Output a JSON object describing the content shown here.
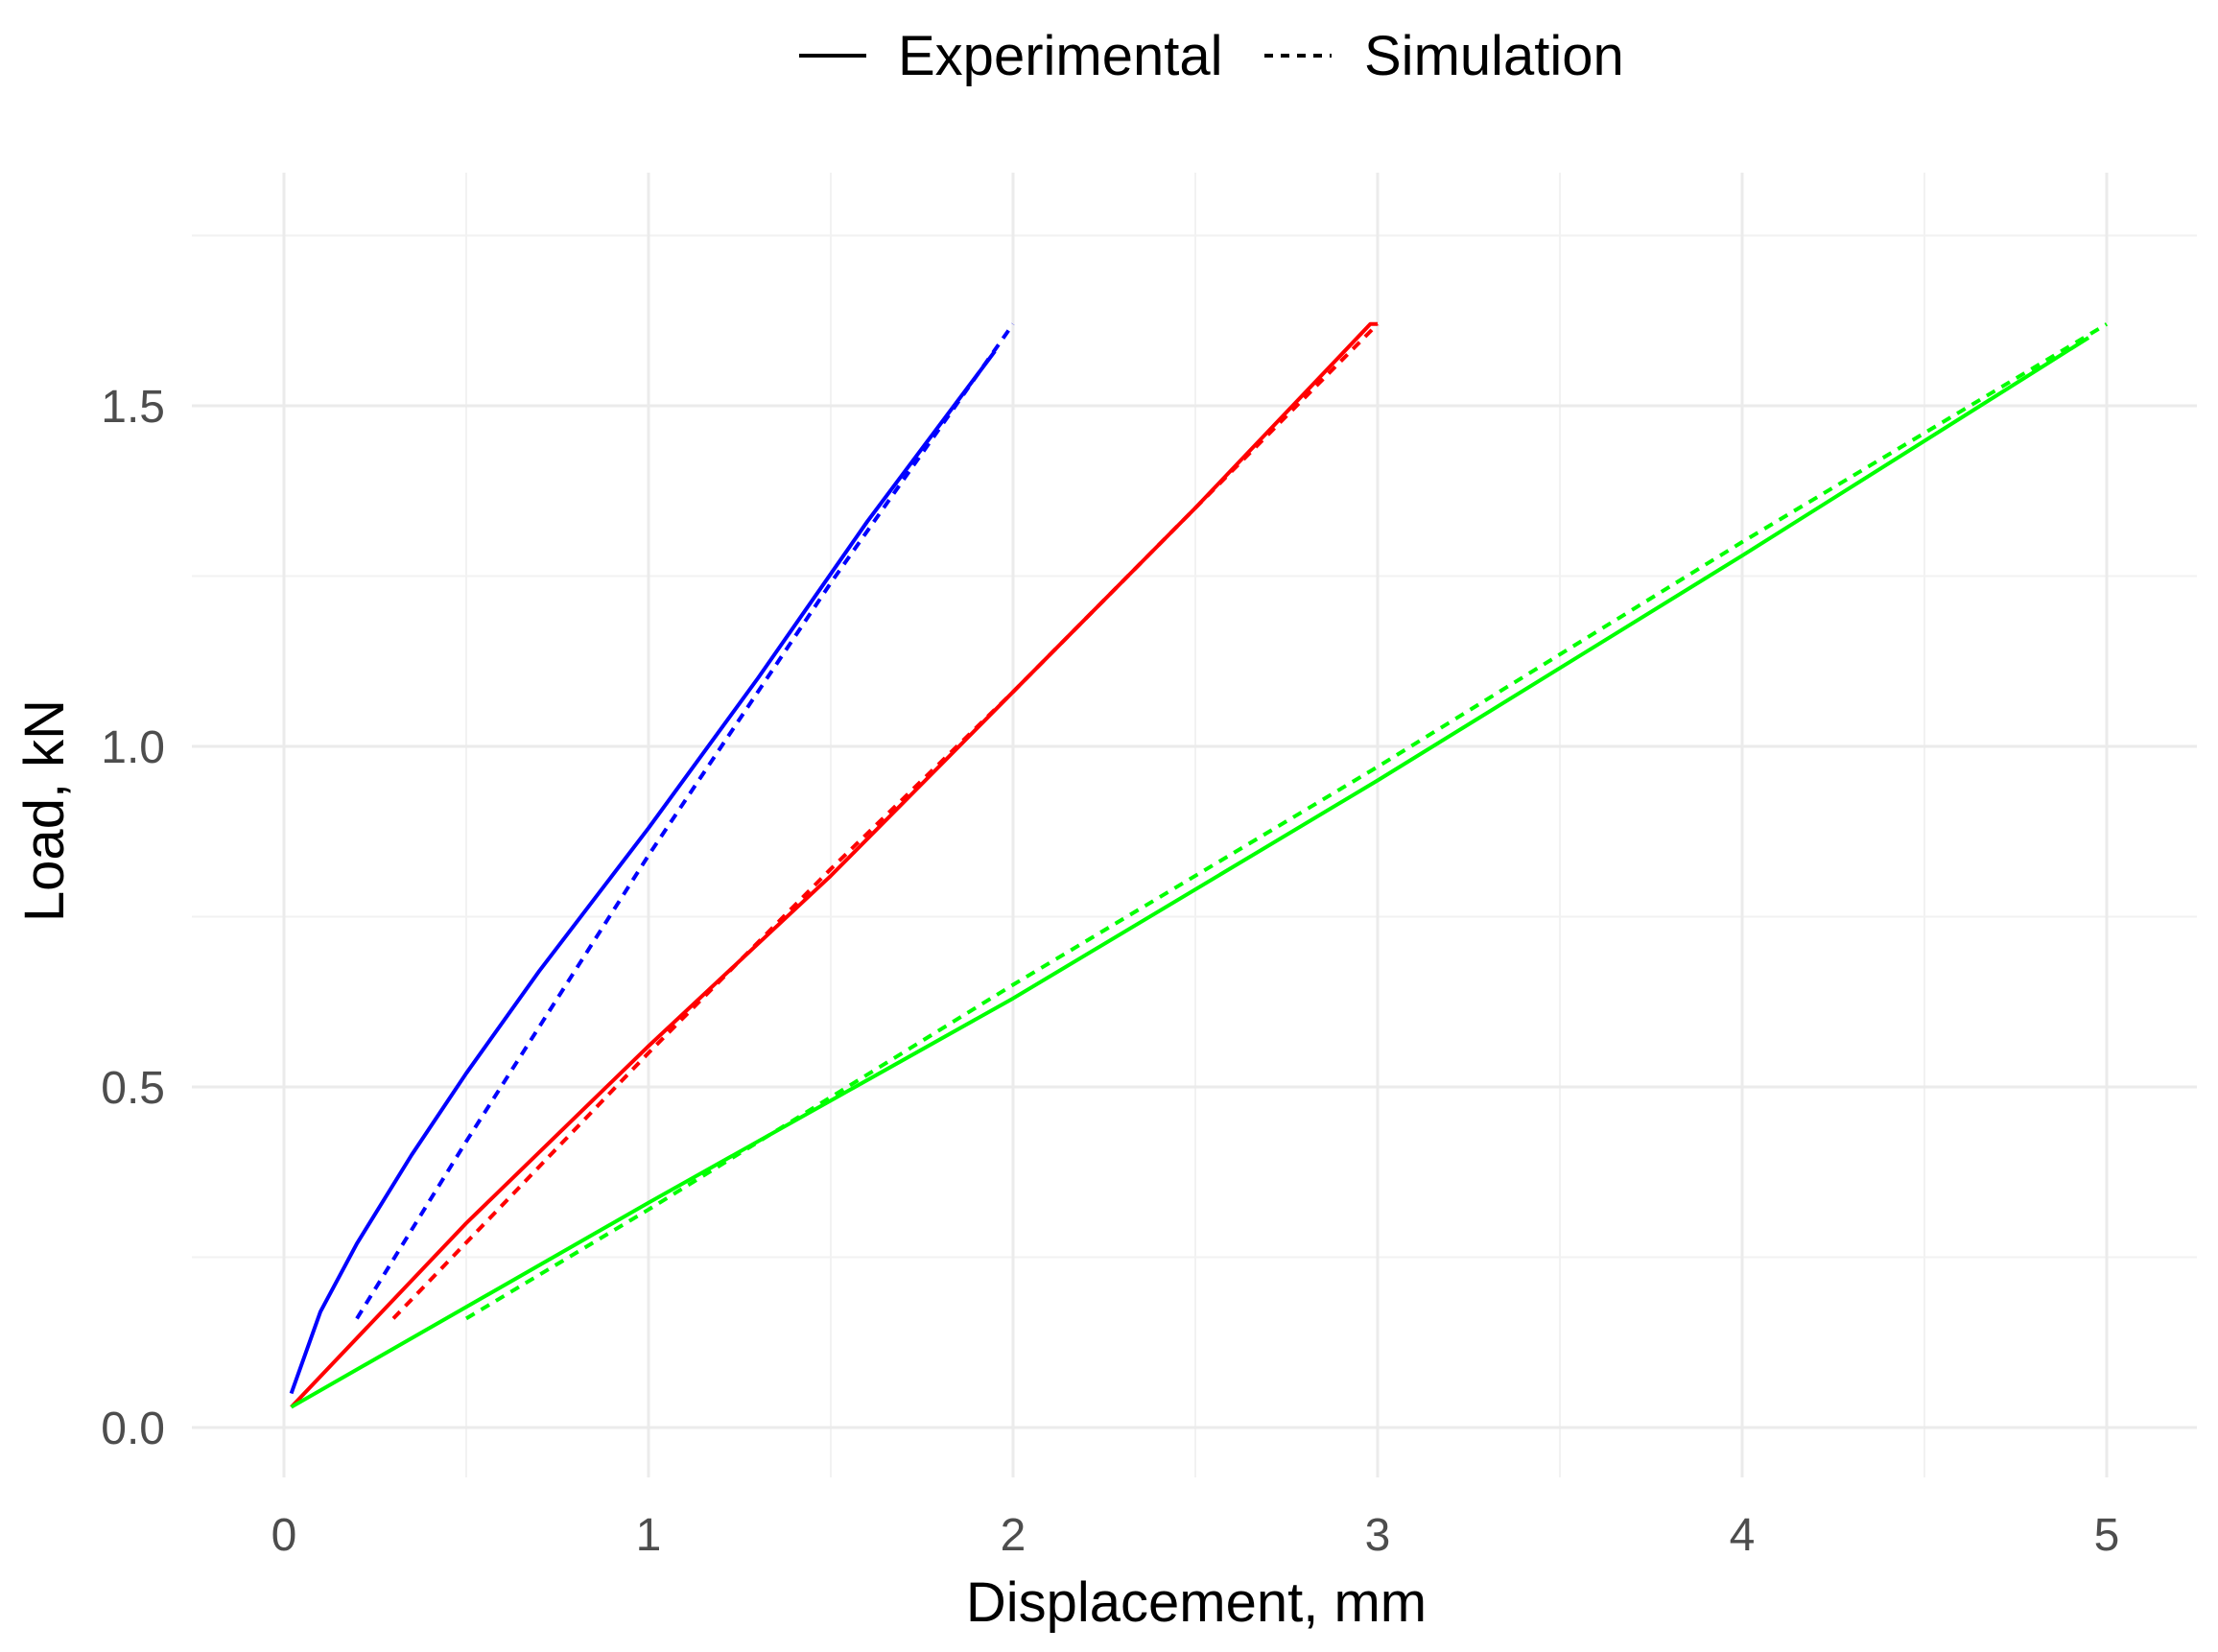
{
  "chart_data": {
    "type": "line",
    "title": "",
    "xlabel": "Displacement, mm",
    "ylabel": "Load, kN",
    "xlim": [
      -0.25,
      5.2
    ],
    "ylim": [
      -0.07,
      1.8
    ],
    "x_ticks": [
      0,
      1,
      2,
      3,
      4,
      5
    ],
    "x_tick_labels": [
      "0",
      "1",
      "2",
      "3",
      "4",
      "5"
    ],
    "y_ticks": [
      0.0,
      0.5,
      1.0,
      1.5
    ],
    "y_tick_labels": [
      "0.0",
      "0.5",
      "1.0",
      "1.5"
    ],
    "grid": true,
    "legend_position": "top",
    "legend": [
      {
        "label": "Experimental",
        "linetype": "solid"
      },
      {
        "label": "Simulation",
        "linetype": "dotted"
      }
    ],
    "series": [
      {
        "group": "blue-experimental",
        "color": "#0000ff",
        "linetype": "solid",
        "x": [
          0.02,
          0.1,
          0.2,
          0.35,
          0.5,
          0.7,
          1.0,
          1.3,
          1.6,
          1.95
        ],
        "y": [
          0.05,
          0.17,
          0.27,
          0.4,
          0.52,
          0.67,
          0.88,
          1.1,
          1.33,
          1.58
        ]
      },
      {
        "group": "blue-simulation",
        "color": "#0000ff",
        "linetype": "dotted",
        "x": [
          0.2,
          0.5,
          1.0,
          1.5,
          2.0
        ],
        "y": [
          0.16,
          0.42,
          0.84,
          1.24,
          1.62
        ]
      },
      {
        "group": "red-experimental",
        "color": "#ff0000",
        "linetype": "solid",
        "x": [
          0.02,
          0.5,
          1.0,
          1.5,
          2.0,
          2.5,
          2.98,
          3.0
        ],
        "y": [
          0.03,
          0.3,
          0.56,
          0.81,
          1.08,
          1.35,
          1.62,
          1.62
        ]
      },
      {
        "group": "red-simulation",
        "color": "#ff0000",
        "linetype": "dotted",
        "x": [
          0.3,
          1.0,
          1.5,
          2.0,
          2.5,
          3.0
        ],
        "y": [
          0.16,
          0.55,
          0.82,
          1.08,
          1.35,
          1.62
        ]
      },
      {
        "group": "green-experimental",
        "color": "#00ff00",
        "linetype": "solid",
        "x": [
          0.02,
          1.0,
          2.0,
          3.0,
          4.0,
          4.95
        ],
        "y": [
          0.03,
          0.33,
          0.63,
          0.95,
          1.28,
          1.6
        ]
      },
      {
        "group": "green-simulation",
        "color": "#00ff00",
        "linetype": "dotted",
        "x": [
          0.5,
          1.0,
          2.0,
          3.0,
          4.0,
          5.0
        ],
        "y": [
          0.16,
          0.32,
          0.65,
          0.97,
          1.3,
          1.62
        ]
      }
    ]
  }
}
